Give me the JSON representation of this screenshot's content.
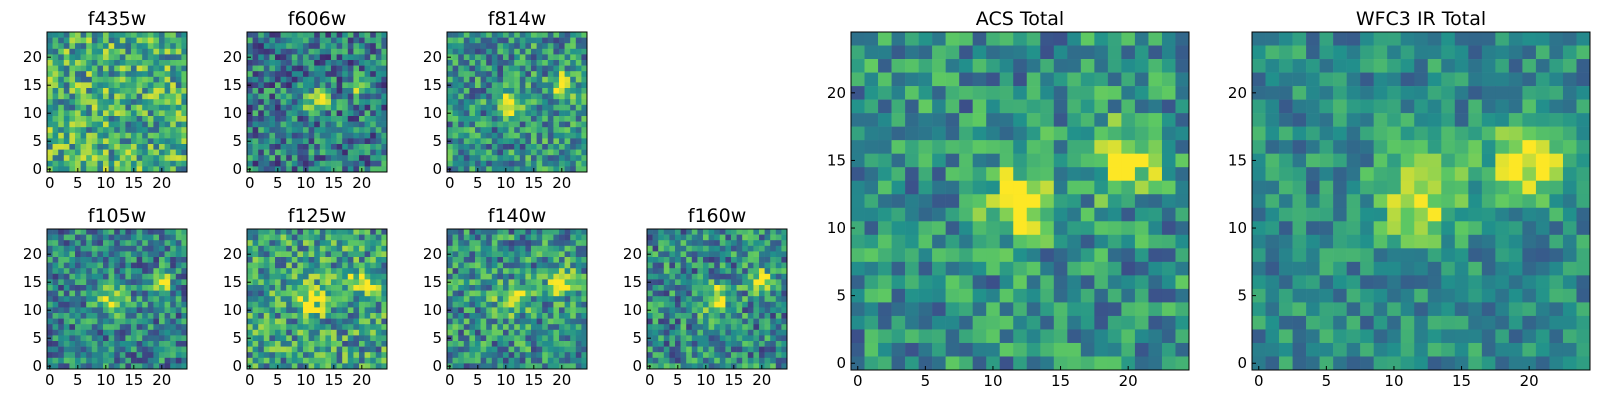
{
  "colormap": [
    "#440154",
    "#3b528b",
    "#21918c",
    "#5ec962",
    "#fde725"
  ],
  "panel_border_color": "#000000",
  "chart_data": [
    {
      "type": "heatmap",
      "title": "f435w",
      "grid_size": 25,
      "xticks": [
        "0",
        "5",
        "10",
        "15",
        "20"
      ],
      "yticks": [
        "0",
        "5",
        "10",
        "15",
        "20"
      ],
      "blobs": [],
      "noise": 0.32,
      "base": 0.62,
      "seed": 11
    },
    {
      "type": "heatmap",
      "title": "f606w",
      "grid_size": 25,
      "xticks": [
        "0",
        "5",
        "10",
        "15",
        "20"
      ],
      "yticks": [
        "0",
        "5",
        "10",
        "15",
        "20"
      ],
      "blobs": [
        {
          "x": 12,
          "y": 12,
          "amp": 0.55,
          "sigma": 1.4
        },
        {
          "x": 20,
          "y": 15,
          "amp": 0.55,
          "sigma": 1.2
        }
      ],
      "noise": 0.3,
      "base": 0.42,
      "seed": 22
    },
    {
      "type": "heatmap",
      "title": "f814w",
      "grid_size": 25,
      "xticks": [
        "0",
        "5",
        "10",
        "15",
        "20"
      ],
      "yticks": [
        "0",
        "5",
        "10",
        "15",
        "20"
      ],
      "blobs": [
        {
          "x": 11,
          "y": 12,
          "amp": 0.5,
          "sigma": 1.6
        },
        {
          "x": 20,
          "y": 15,
          "amp": 0.55,
          "sigma": 1.4
        }
      ],
      "noise": 0.3,
      "base": 0.5,
      "seed": 33
    },
    {
      "type": "heatmap",
      "title": "ACS Total",
      "grid_size": 25,
      "xticks": [
        "0",
        "5",
        "10",
        "15",
        "20"
      ],
      "yticks": [
        "0",
        "5",
        "10",
        "15",
        "20"
      ],
      "blobs": [
        {
          "x": 12,
          "y": 12,
          "amp": 0.55,
          "sigma": 1.8
        },
        {
          "x": 20,
          "y": 15,
          "amp": 0.55,
          "sigma": 1.7
        }
      ],
      "noise": 0.26,
      "base": 0.5,
      "seed": 44
    },
    {
      "type": "heatmap",
      "title": "WFC3 IR Total",
      "grid_size": 25,
      "xticks": [
        "0",
        "5",
        "10",
        "15",
        "20"
      ],
      "yticks": [
        "0",
        "5",
        "10",
        "15",
        "20"
      ],
      "blobs": [
        {
          "x": 12,
          "y": 12,
          "amp": 0.5,
          "sigma": 2.2
        },
        {
          "x": 20,
          "y": 15,
          "amp": 0.6,
          "sigma": 2.0
        }
      ],
      "noise": 0.2,
      "base": 0.48,
      "seed": 55
    },
    {
      "type": "heatmap",
      "title": "f105w",
      "grid_size": 25,
      "xticks": [
        "0",
        "5",
        "10",
        "15",
        "20"
      ],
      "yticks": [
        "0",
        "5",
        "10",
        "15",
        "20"
      ],
      "blobs": [
        {
          "x": 11,
          "y": 12,
          "amp": 0.45,
          "sigma": 1.8
        },
        {
          "x": 20,
          "y": 15,
          "amp": 0.5,
          "sigma": 1.4
        }
      ],
      "noise": 0.28,
      "base": 0.45,
      "seed": 66
    },
    {
      "type": "heatmap",
      "title": "f125w",
      "grid_size": 25,
      "xticks": [
        "0",
        "5",
        "10",
        "15",
        "20"
      ],
      "yticks": [
        "0",
        "5",
        "10",
        "15",
        "20"
      ],
      "blobs": [
        {
          "x": 11,
          "y": 12,
          "amp": 0.4,
          "sigma": 2.0
        },
        {
          "x": 20,
          "y": 15,
          "amp": 0.45,
          "sigma": 1.6
        }
      ],
      "noise": 0.32,
      "base": 0.55,
      "seed": 77
    },
    {
      "type": "heatmap",
      "title": "f140w",
      "grid_size": 25,
      "xticks": [
        "0",
        "5",
        "10",
        "15",
        "20"
      ],
      "yticks": [
        "0",
        "5",
        "10",
        "15",
        "20"
      ],
      "blobs": [
        {
          "x": 11,
          "y": 12,
          "amp": 0.45,
          "sigma": 1.8
        },
        {
          "x": 20,
          "y": 15,
          "amp": 0.55,
          "sigma": 1.6
        }
      ],
      "noise": 0.3,
      "base": 0.5,
      "seed": 88
    },
    {
      "type": "heatmap",
      "title": "f160w",
      "grid_size": 25,
      "xticks": [
        "0",
        "5",
        "10",
        "15",
        "20"
      ],
      "yticks": [
        "0",
        "5",
        "10",
        "15",
        "20"
      ],
      "blobs": [
        {
          "x": 12,
          "y": 12,
          "amp": 0.5,
          "sigma": 1.8
        },
        {
          "x": 20,
          "y": 15,
          "amp": 0.55,
          "sigma": 1.5
        }
      ],
      "noise": 0.3,
      "base": 0.48,
      "seed": 99
    }
  ]
}
